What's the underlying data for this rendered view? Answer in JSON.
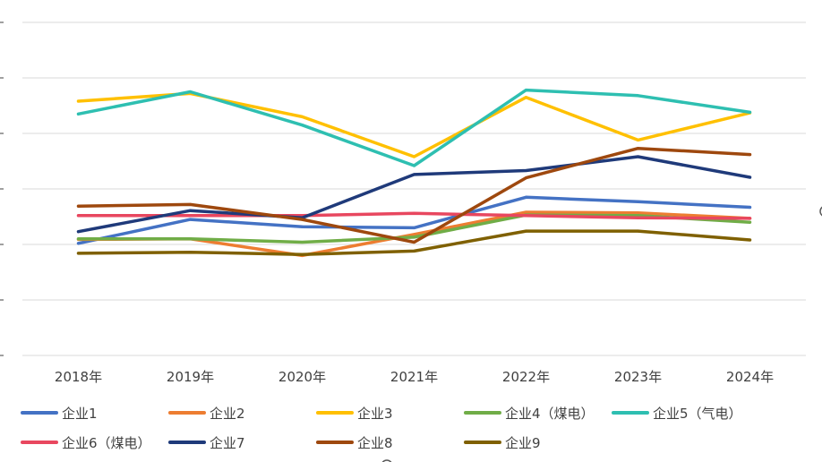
{
  "chart_data": {
    "type": "line",
    "title": "",
    "xlabel": "",
    "ylabel": "",
    "categories": [
      "2018年",
      "2019年",
      "2020年",
      "2021年",
      "2022年",
      "2023年",
      "2024年"
    ],
    "ylim": [
      0,
      6
    ],
    "grid": true,
    "legend_position": "bottom",
    "series": [
      {
        "name": "企业1",
        "color": "#4472c4",
        "values": [
          2.02,
          2.45,
          2.32,
          2.3,
          2.85,
          2.77,
          2.67
        ]
      },
      {
        "name": "企业2",
        "color": "#ed7d31",
        "values": [
          2.09,
          2.1,
          1.8,
          2.18,
          2.58,
          2.57,
          2.47
        ]
      },
      {
        "name": "企业3",
        "color": "#ffc000",
        "values": [
          4.58,
          4.72,
          4.3,
          3.58,
          4.65,
          3.88,
          4.37
        ]
      },
      {
        "name": "企业4（煤电）",
        "color": "#70ad47",
        "values": [
          2.1,
          2.1,
          2.04,
          2.13,
          2.53,
          2.52,
          2.4
        ]
      },
      {
        "name": "企业5（气电）",
        "color": "#2ebfb1",
        "values": [
          4.35,
          4.75,
          4.15,
          3.42,
          4.78,
          4.68,
          4.38
        ]
      },
      {
        "name": "企业6（煤电）",
        "color": "#e8475f",
        "values": [
          2.52,
          2.52,
          2.52,
          2.56,
          2.52,
          2.48,
          2.47
        ]
      },
      {
        "name": "企业7",
        "color": "#1f3a7a",
        "values": [
          2.23,
          2.61,
          2.48,
          3.26,
          3.33,
          3.58,
          3.21
        ]
      },
      {
        "name": "企业8",
        "color": "#9e480e",
        "values": [
          2.69,
          2.72,
          2.45,
          2.04,
          3.2,
          3.73,
          3.62
        ]
      },
      {
        "name": "企业9",
        "color": "#7f6000",
        "values": [
          1.84,
          1.86,
          1.82,
          1.88,
          2.24,
          2.24,
          2.08
        ]
      }
    ]
  }
}
